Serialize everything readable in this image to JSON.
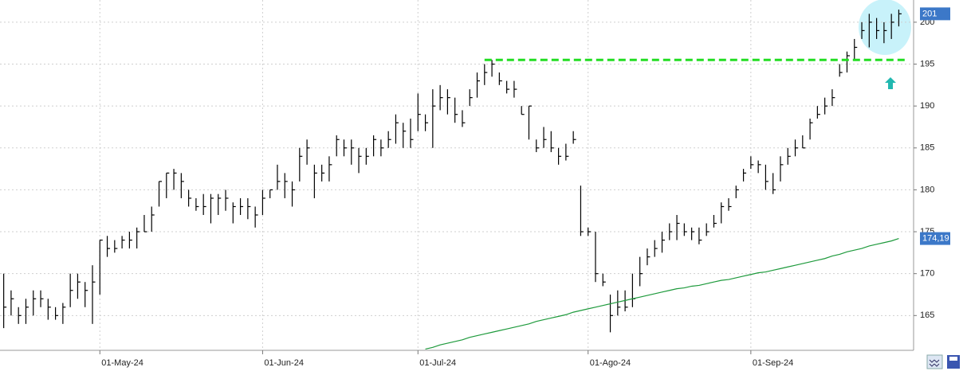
{
  "chart_data": {
    "type": "ohlc",
    "high": [
      170,
      168,
      166,
      167,
      168,
      168,
      167,
      166,
      166.5,
      170,
      170,
      169,
      171,
      174,
      174.5,
      174,
      174.5,
      175,
      175.5,
      177,
      178,
      181,
      182,
      182.5,
      182,
      180,
      179,
      179.5,
      179.5,
      179.5,
      180,
      178.5,
      179,
      179,
      178,
      180,
      180,
      183,
      182,
      181,
      185,
      186,
      183,
      183,
      184,
      186.5,
      186,
      186,
      185,
      185,
      186.5,
      186,
      187,
      189,
      188,
      188.5,
      191.5,
      189,
      192,
      192.5,
      192,
      191,
      189.5,
      192,
      194,
      195,
      195.5,
      194,
      193,
      193,
      190,
      190,
      186,
      187.5,
      187,
      185,
      185.5,
      187,
      180.5,
      175.5,
      175,
      170,
      167.5,
      168,
      168,
      170,
      172,
      173,
      174,
      175,
      176,
      177,
      176,
      175.5,
      175.5,
      176,
      177,
      178.5,
      179,
      180.5,
      182.5,
      184,
      183.5,
      183,
      182,
      184,
      185,
      186,
      186.5,
      188.5,
      190,
      191,
      192,
      195,
      196.5,
      198,
      200,
      201,
      200.5,
      200,
      201,
      201.5
    ],
    "low": [
      163.5,
      165,
      164,
      164,
      165,
      166,
      164.5,
      164.5,
      164,
      166,
      167,
      166,
      164,
      167.5,
      172,
      172.5,
      173,
      173,
      173,
      175,
      175,
      178,
      179,
      180,
      179,
      178,
      177.5,
      177,
      176,
      177,
      177.5,
      176,
      177,
      176.5,
      175.5,
      177,
      179,
      180,
      179,
      178,
      181,
      183,
      179,
      181,
      181,
      184,
      184,
      183,
      182,
      183,
      184,
      184,
      185,
      185.5,
      185,
      185,
      187,
      187,
      185,
      189.5,
      189,
      188,
      187.5,
      190,
      191,
      192.5,
      193.5,
      192.5,
      191.5,
      191,
      189,
      186,
      184.5,
      185,
      184.5,
      183,
      183.5,
      185.5,
      174.5,
      174.5,
      169,
      168.5,
      163,
      165,
      165.5,
      166,
      168.5,
      171,
      172,
      172.5,
      174,
      174,
      174.5,
      174,
      173.5,
      174.5,
      175.5,
      176,
      177.5,
      179,
      181,
      182.5,
      182,
      180,
      179.5,
      181,
      183,
      184,
      185,
      186,
      188.5,
      189,
      190,
      193.5,
      194,
      195.5,
      198,
      197,
      198,
      197.5,
      198,
      199.5
    ],
    "close": [
      166,
      167,
      165,
      166,
      167,
      167,
      166,
      165,
      166,
      168,
      169,
      168,
      169,
      174,
      173,
      173,
      174,
      174,
      175,
      175,
      177,
      181,
      182,
      182,
      181,
      179,
      178,
      178,
      179,
      179,
      179,
      178,
      178,
      178,
      177,
      179,
      180,
      181,
      181,
      180,
      184,
      185,
      182,
      182,
      183,
      186,
      185,
      185,
      184,
      184,
      186,
      185,
      186,
      188,
      187,
      186,
      189,
      188,
      190,
      191,
      191,
      189,
      188,
      191,
      193,
      194,
      195,
      193,
      192,
      192,
      189,
      190,
      185,
      186,
      185,
      184,
      184,
      186,
      175,
      175,
      170,
      169,
      165,
      166,
      166,
      167,
      170,
      172,
      173,
      174,
      175,
      176,
      175,
      175,
      174,
      175,
      176,
      178,
      178,
      180,
      182,
      183,
      183,
      181,
      180,
      183,
      184,
      185,
      185,
      188,
      189,
      190,
      191,
      194,
      196,
      197,
      199,
      200,
      199,
      199,
      200,
      201
    ],
    "ma": [
      null,
      null,
      null,
      null,
      null,
      null,
      null,
      null,
      null,
      null,
      null,
      null,
      null,
      null,
      null,
      null,
      null,
      null,
      null,
      null,
      null,
      null,
      null,
      null,
      null,
      null,
      null,
      null,
      null,
      null,
      null,
      null,
      null,
      null,
      null,
      null,
      null,
      null,
      null,
      null,
      null,
      null,
      null,
      null,
      null,
      null,
      null,
      null,
      null,
      null,
      null,
      null,
      null,
      null,
      null,
      null,
      null,
      161.0,
      161.2,
      161.5,
      161.7,
      161.9,
      162.1,
      162.4,
      162.6,
      162.8,
      163.0,
      163.2,
      163.4,
      163.6,
      163.8,
      164.0,
      164.3,
      164.5,
      164.7,
      164.9,
      165.1,
      165.4,
      165.6,
      165.8,
      166.0,
      166.2,
      166.4,
      166.6,
      166.8,
      167.0,
      167.2,
      167.4,
      167.6,
      167.8,
      168.0,
      168.2,
      168.3,
      168.5,
      168.6,
      168.8,
      169.0,
      169.2,
      169.3,
      169.5,
      169.7,
      169.9,
      170.1,
      170.2,
      170.4,
      170.6,
      170.8,
      171.0,
      171.2,
      171.4,
      171.6,
      171.8,
      172.1,
      172.3,
      172.6,
      172.8,
      173.0,
      173.3,
      173.5,
      173.7,
      173.9,
      174.19
    ],
    "bar_color": "#000000",
    "ma_color": "#1e9a3c",
    "level_color": "#22dd22",
    "level": 195.5,
    "level_start": 65,
    "price_label": {
      "value": 201,
      "label": "201"
    },
    "ma_label": {
      "value": 174.19,
      "label": "174,19"
    },
    "xlim": [
      -0.5,
      123
    ],
    "xticks": [
      {
        "value": 13,
        "label": "01-May-24"
      },
      {
        "value": 35,
        "label": "01-Jun-24"
      },
      {
        "value": 56,
        "label": "01-Jul-24"
      },
      {
        "value": 79,
        "label": "01-Ago-24"
      },
      {
        "value": 101,
        "label": "01-Sep-24"
      }
    ],
    "ylim": [
      160.85,
      202.65
    ],
    "yticks": [
      165,
      170,
      175,
      180,
      185,
      190,
      195,
      200
    ],
    "grid": true
  }
}
